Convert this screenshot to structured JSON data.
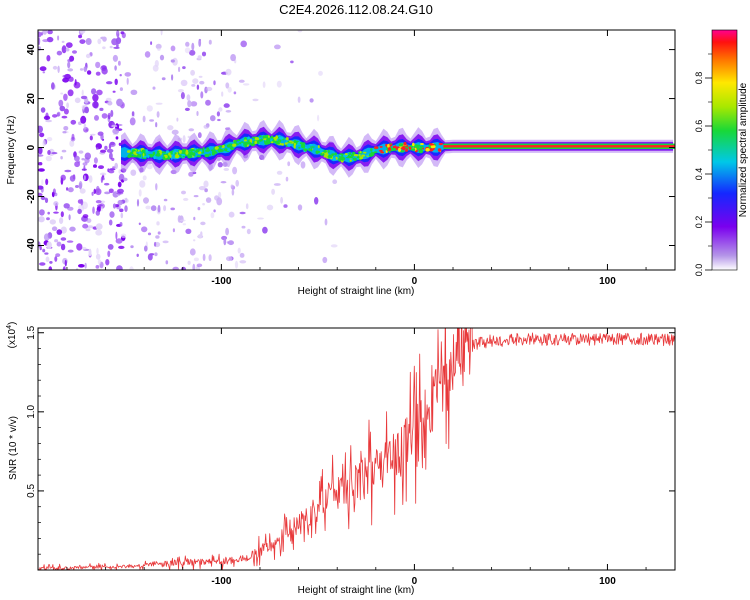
{
  "title": "C2E4.2026.112.08.24.G10",
  "chart_data": [
    {
      "type": "heatmap",
      "xlabel": "Height of straight line (km)",
      "ylabel": "Frequency (Hz)",
      "xlim": [
        -195,
        135
      ],
      "ylim": [
        -50,
        48
      ],
      "xticks": [
        -100,
        0,
        100
      ],
      "xtick_labels": [
        "-100",
        "0",
        "100"
      ],
      "yticks": [
        -40,
        -20,
        0,
        20,
        40
      ],
      "ytick_labels": [
        "-40",
        "-20",
        "0",
        "20",
        "40"
      ],
      "ridge": {
        "x": [
          -150,
          -130,
          -110,
          -100,
          -90,
          -80,
          -70,
          -60,
          -50,
          -40,
          -30,
          -20,
          -10,
          0,
          10,
          20,
          135
        ],
        "y": [
          -2,
          -3,
          -2,
          -1,
          2,
          3,
          3,
          1,
          -1,
          -4,
          -4,
          -1,
          0,
          0,
          0,
          0.5,
          0.5
        ]
      },
      "colorbar": {
        "label": "Normalized spectral amplitude",
        "range": [
          0,
          1
        ],
        "ticks": [
          0.0,
          0.2,
          0.4,
          0.6,
          0.8
        ],
        "tick_labels": [
          "0.0",
          "0.2",
          "0.4",
          "0.6",
          "0.8"
        ]
      }
    },
    {
      "type": "line",
      "xlabel": "Height of straight line (km)",
      "ylabel": "SNR (10 * v/v)",
      "scale_label": "(x10",
      "scale_exp": "4",
      "scale_close": ")",
      "xlim": [
        -195,
        135
      ],
      "ylim": [
        0,
        1.53
      ],
      "xticks": [
        -100,
        0,
        100
      ],
      "xtick_labels": [
        "-100",
        "0",
        "100"
      ],
      "yticks": [
        0.5,
        1.0,
        1.5
      ],
      "ytick_labels": [
        "0.5",
        "1.0",
        "1.5"
      ],
      "color": "#e8383a",
      "series": [
        {
          "name": "SNR",
          "x": [
            -195,
            -150,
            -120,
            -100,
            -85,
            -80,
            -70,
            -60,
            -50,
            -40,
            -30,
            -20,
            -10,
            0,
            10,
            20,
            30,
            40,
            60,
            80,
            100,
            120,
            135
          ],
          "y": [
            0.01,
            0.02,
            0.05,
            0.05,
            0.08,
            0.12,
            0.2,
            0.3,
            0.4,
            0.48,
            0.55,
            0.62,
            0.72,
            0.85,
            1.05,
            1.28,
            1.42,
            1.45,
            1.46,
            1.46,
            1.46,
            1.46,
            1.45
          ]
        }
      ]
    }
  ]
}
